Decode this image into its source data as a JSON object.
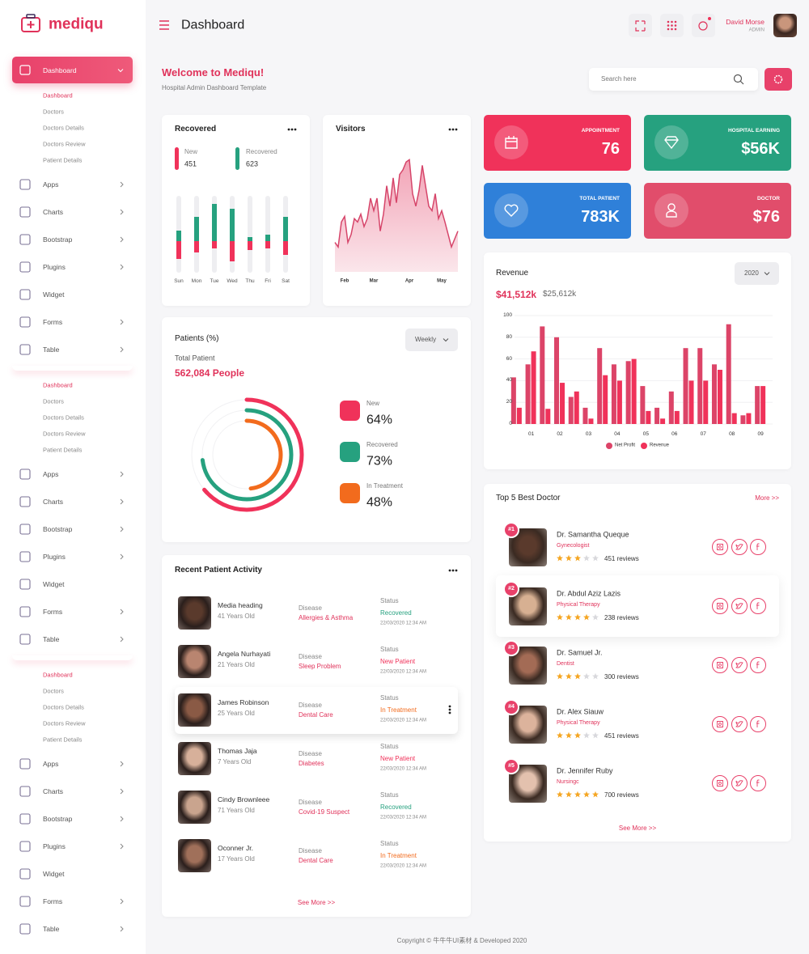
{
  "sidebar": {
    "logo": "mediqu",
    "active": "Dashboard",
    "groups": [
      {
        "submenu": [
          "Dashboard",
          "Doctors",
          "Doctors Details",
          "Doctors Review",
          "Patient Details"
        ],
        "menu": [
          {
            "label": "Apps",
            "expandable": true
          },
          {
            "label": "Charts",
            "expandable": true
          },
          {
            "label": "Bootstrap",
            "expandable": true
          },
          {
            "label": "Plugins",
            "expandable": true
          },
          {
            "label": "Widget",
            "expandable": false
          },
          {
            "label": "Forms",
            "expandable": true
          },
          {
            "label": "Table",
            "expandable": true
          }
        ]
      },
      {
        "submenu": [
          "Dashboard",
          "Doctors",
          "Doctors Details",
          "Doctors Review",
          "Patient Details"
        ],
        "menu": [
          {
            "label": "Apps",
            "expandable": true
          },
          {
            "label": "Charts",
            "expandable": true
          },
          {
            "label": "Bootstrap",
            "expandable": true
          },
          {
            "label": "Plugins",
            "expandable": true
          },
          {
            "label": "Widget",
            "expandable": false
          },
          {
            "label": "Forms",
            "expandable": true
          },
          {
            "label": "Table",
            "expandable": true
          }
        ]
      },
      {
        "submenu": [
          "Dashboard",
          "Doctors",
          "Doctors Details",
          "Doctors Review",
          "Patient Details"
        ],
        "menu": [
          {
            "label": "Apps",
            "expandable": true
          },
          {
            "label": "Charts",
            "expandable": true
          },
          {
            "label": "Bootstrap",
            "expandable": true
          },
          {
            "label": "Plugins",
            "expandable": true
          },
          {
            "label": "Widget",
            "expandable": false
          },
          {
            "label": "Forms",
            "expandable": true
          },
          {
            "label": "Table",
            "expandable": true
          }
        ]
      }
    ]
  },
  "header": {
    "title": "Dashboard",
    "user": "David Morse",
    "role": "ADMIN"
  },
  "welcome": {
    "title": "Welcome to Mediqu!",
    "subtitle": "Hospital Admin Dashboard Template",
    "search_placeholder": "Search here"
  },
  "recovered": {
    "title": "Recovered",
    "type": "bar",
    "categories": [
      "Sun",
      "Mon",
      "Tue",
      "Wed",
      "Thu",
      "Fri",
      "Sat"
    ],
    "series": [
      {
        "name": "New",
        "total": 451,
        "color": "#f0325a",
        "values": [
          22,
          14,
          9,
          25,
          11,
          9,
          17
        ]
      },
      {
        "name": "Recovered",
        "total": 623,
        "color": "#26a17f",
        "values": [
          13,
          30,
          46,
          40,
          5,
          8,
          30
        ]
      }
    ]
  },
  "visitors": {
    "title": "Visitors",
    "type": "area",
    "color": "#d6456a",
    "categories": [
      null,
      null,
      null,
      "Feb",
      null,
      null,
      null,
      null,
      null,
      null,
      null,
      null,
      "Mar",
      null,
      null,
      null,
      null,
      null,
      null,
      null,
      null,
      null,
      null,
      "Apr",
      null,
      null,
      null,
      null,
      null,
      null,
      null,
      null,
      null,
      "May",
      null,
      null,
      null,
      null,
      null
    ],
    "values": [
      26,
      22,
      44,
      49,
      26,
      33,
      47,
      44,
      51,
      40,
      47,
      65,
      54,
      65,
      36,
      51,
      76,
      58,
      83,
      61,
      86,
      90,
      97,
      99,
      69,
      58,
      72,
      94,
      76,
      58,
      54,
      69,
      47,
      54,
      44,
      33,
      22,
      29,
      36
    ]
  },
  "stats": [
    {
      "label": "APPOINTMENT",
      "value": 76,
      "color": "#f0325a"
    },
    {
      "label": "HOSPITAL EARNING",
      "value": "$56K",
      "color": "#26a17f"
    },
    {
      "label": "TOTAL PATIENT",
      "value": "783K",
      "color": "#2f80d9"
    },
    {
      "label": "DOCTOR",
      "value": "$76",
      "color": "#e14d6b"
    }
  ],
  "patients": {
    "title": "Patients (%)",
    "period": "Weekly",
    "total_label": "Total Patient",
    "total": "562,084 People",
    "chart": {
      "type": "donut",
      "categories": [
        "New",
        "Recovered",
        "In Treatment"
      ],
      "values": [
        64,
        73,
        48
      ],
      "value_labels": [
        "64%",
        "73%",
        "48%"
      ],
      "colors": [
        "#f0325a",
        "#26a17f",
        "#f26b1d"
      ]
    }
  },
  "activity": {
    "title": "Recent Patient Activity",
    "disease_label": "Disease",
    "status_label": "Status",
    "rows": [
      {
        "name": "Media heading",
        "age": "41 Years Old",
        "disease": "Allergies & Asthma",
        "status": "Recovered",
        "status_color": "#26a17f",
        "date": "22/03/2020 12:34 AM"
      },
      {
        "name": "Angela Nurhayati",
        "age": "21 Years Old",
        "disease": "Sleep Problem",
        "status": "New Patient",
        "status_color": "#f0325a",
        "date": "22/03/2020 12:34 AM"
      },
      {
        "name": "James Robinson",
        "age": "25 Years Old",
        "disease": "Dental Care",
        "status": "In Treatment",
        "status_color": "#f26b1d",
        "date": "22/03/2020 12:34 AM"
      },
      {
        "name": "Thomas Jaja",
        "age": "7 Years Old",
        "disease": "Diabetes",
        "status": "New Patient",
        "status_color": "#f0325a",
        "date": "22/03/2020 12:34 AM"
      },
      {
        "name": "Cindy Brownleee",
        "age": "71 Years Old",
        "disease": "Covid-19 Suspect",
        "status": "Recovered",
        "status_color": "#26a17f",
        "date": "22/03/2020 12:34 AM"
      },
      {
        "name": "Oconner Jr.",
        "age": "17 Years Old",
        "disease": "Dental Care",
        "status": "In Treatment",
        "status_color": "#f26b1d",
        "date": "22/03/2020 12:34 AM"
      }
    ],
    "more": "See More >>"
  },
  "revenue": {
    "title": "Revenue",
    "year": "2020",
    "totals": [
      "$41,512k",
      "$25,612k"
    ],
    "chart": {
      "type": "bar",
      "categories": [
        null,
        "01",
        null,
        "02",
        null,
        "03",
        null,
        "04",
        null,
        "05",
        null,
        "06",
        null,
        "07",
        null,
        "08",
        null,
        "09"
      ],
      "series": [
        {
          "name": "Net Profit",
          "color": "#dc4468",
          "values": [
            43,
            55,
            90,
            80,
            25,
            15,
            70,
            55,
            58,
            35,
            15,
            30,
            70,
            70,
            55,
            92,
            8,
            35
          ]
        },
        {
          "name": "Revenue",
          "color": "#f0325a",
          "values": [
            15,
            67,
            14,
            38,
            30,
            5,
            45,
            40,
            60,
            12,
            5,
            12,
            40,
            40,
            50,
            10,
            10,
            35
          ]
        }
      ],
      "ylim": [
        0,
        100
      ],
      "yticks": [
        0,
        20,
        40,
        60,
        80,
        100
      ],
      "grid": true
    }
  },
  "doctors": {
    "title": "Top 5 Best Doctor",
    "more_link": "More >>",
    "list": [
      {
        "rank": "#1",
        "name": "Dr. Samantha Queque",
        "specialty": "Gynecologist",
        "rating": 3,
        "reviews": "451 reviews"
      },
      {
        "rank": "#2",
        "name": "Dr. Abdul Aziz Lazis",
        "specialty": "Physical Therapy",
        "rating": 4,
        "reviews": "238 reviews"
      },
      {
        "rank": "#3",
        "name": "Dr. Samuel Jr.",
        "specialty": "Dentist",
        "rating": 3,
        "reviews": "300 reviews"
      },
      {
        "rank": "#4",
        "name": "Dr. Alex Siauw",
        "specialty": "Physical Therapy",
        "rating": 3,
        "reviews": "451 reviews"
      },
      {
        "rank": "#5",
        "name": "Dr. Jennifer Ruby",
        "specialty": "Nursingc",
        "rating": 5,
        "reviews": "700 reviews"
      }
    ],
    "see_more": "See More >>"
  },
  "footer": "Copyright © 牛牛牛UI素材 & Developed 2020"
}
